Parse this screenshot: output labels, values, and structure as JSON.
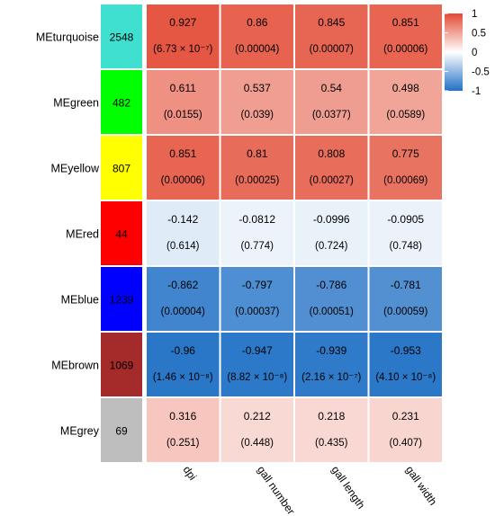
{
  "chart_data": {
    "type": "heatmap",
    "title": "",
    "xlabel": "",
    "ylabel": "",
    "columns": [
      "dpi",
      "gall number",
      "gall length",
      "gall width"
    ],
    "rows": [
      {
        "module": "MEturquoise",
        "color": "#40E0D0",
        "count": "2548",
        "values": [
          0.927,
          0.86,
          0.845,
          0.851
        ],
        "pvalues": [
          "(6.73 × 10⁻⁷)",
          "(0.00004)",
          "(0.00007)",
          "(0.00006)"
        ]
      },
      {
        "module": "MEgreen",
        "color": "#00FF00",
        "count": "482",
        "values": [
          0.611,
          0.537,
          0.54,
          0.498
        ],
        "pvalues": [
          "(0.0155)",
          "(0.039)",
          "(0.0377)",
          "(0.0589)"
        ]
      },
      {
        "module": "MEyellow",
        "color": "#FFFF00",
        "count": "807",
        "values": [
          0.851,
          0.81,
          0.808,
          0.775
        ],
        "pvalues": [
          "(0.00006)",
          "(0.00025)",
          "(0.00027)",
          "(0.00069)"
        ]
      },
      {
        "module": "MEred",
        "color": "#FF0000",
        "count": "44",
        "values": [
          -0.142,
          -0.0812,
          -0.0996,
          -0.0905
        ],
        "pvalues": [
          "(0.614)",
          "(0.774)",
          "(0.724)",
          "(0.748)"
        ]
      },
      {
        "module": "MEblue",
        "color": "#0000FF",
        "count": "1239",
        "values": [
          -0.862,
          -0.797,
          -0.786,
          -0.781
        ],
        "pvalues": [
          "(0.00004)",
          "(0.00037)",
          "(0.00051)",
          "(0.00059)"
        ]
      },
      {
        "module": "MEbrown",
        "color": "#A52A2A",
        "count": "1069",
        "values": [
          -0.96,
          -0.947,
          -0.939,
          -0.953
        ],
        "pvalues": [
          "(1.46 × 10⁻⁸)",
          "(8.82 × 10⁻⁸)",
          "(2.16 × 10⁻⁷)",
          "(4.10 × 10⁻⁸)"
        ]
      },
      {
        "module": "MEgrey",
        "color": "#BEBEBE",
        "count": "69",
        "values": [
          0.316,
          0.212,
          0.218,
          0.231
        ],
        "pvalues": [
          "(0.251)",
          "(0.448)",
          "(0.435)",
          "(0.407)"
        ]
      }
    ],
    "legend": {
      "placement": "top-right",
      "range": [
        -1,
        1
      ],
      "ticks": [
        "1",
        "0.5",
        "0",
        "-0.5",
        "-1"
      ],
      "tick_values": [
        1,
        0.5,
        0,
        -0.5,
        -1
      ],
      "colors": {
        "high": "#E34A33",
        "mid": "#FFFFFF",
        "low": "#2171C6"
      }
    }
  }
}
